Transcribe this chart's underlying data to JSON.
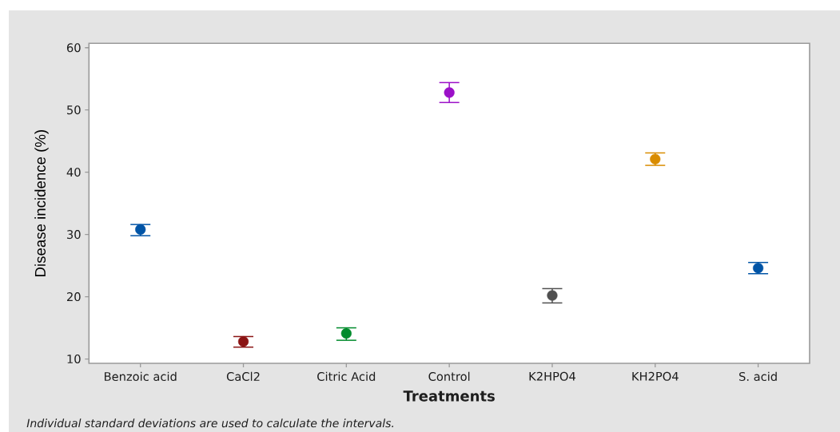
{
  "chart_data": {
    "type": "scatter",
    "xlabel": "Treatments",
    "ylabel": "Disease incidence (%)",
    "annotations": [
      "Individual standard deviations are used to calculate the intervals."
    ],
    "categories": [
      "Benzoic acid",
      "CaCl2",
      "Citric Acid",
      "Control",
      "K2HPO4",
      "KH2PO4",
      "S. acid"
    ],
    "values": [
      30.8,
      12.8,
      14.1,
      52.8,
      20.2,
      42.1,
      24.6
    ],
    "errors": [
      [
        29.8,
        31.6
      ],
      [
        11.9,
        13.6
      ],
      [
        13.0,
        15.0
      ],
      [
        51.2,
        54.4
      ],
      [
        19.0,
        21.3
      ],
      [
        41.1,
        43.1
      ],
      [
        23.7,
        25.5
      ]
    ],
    "colors": [
      "#0054a6",
      "#8b1414",
      "#008b2c",
      "#9b10c8",
      "#505050",
      "#d98c00",
      "#0054a6"
    ],
    "ylim": [
      9.3,
      60.7
    ],
    "yticks": [
      10,
      20,
      30,
      40,
      50,
      60
    ],
    "marker": "circle"
  }
}
